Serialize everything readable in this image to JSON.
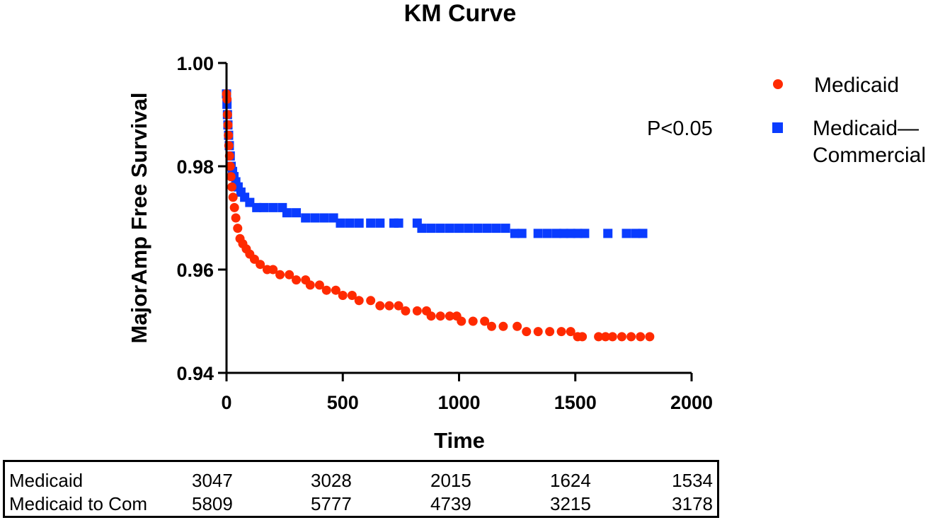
{
  "chart_data": {
    "type": "scatter",
    "title": "KM Curve",
    "xlabel": "Time",
    "ylabel": "MajorAmp Free Survival",
    "xlim": [
      0,
      2000
    ],
    "ylim": [
      0.94,
      1.0
    ],
    "x_ticks": [
      "0",
      "500",
      "1000",
      "1500",
      "2000"
    ],
    "y_ticks": [
      "0.94",
      "0.96",
      "0.98",
      "1.00"
    ],
    "annotation": "P<0.05",
    "legend_position": "right",
    "series": [
      {
        "name": "Medicaid",
        "marker": "circle",
        "color": "#ff2a00",
        "points": [
          [
            0,
            0.994
          ],
          [
            2,
            0.993
          ],
          [
            4,
            0.99
          ],
          [
            6,
            0.988
          ],
          [
            8,
            0.986
          ],
          [
            10,
            0.984
          ],
          [
            13,
            0.982
          ],
          [
            16,
            0.98
          ],
          [
            19,
            0.978
          ],
          [
            23,
            0.976
          ],
          [
            28,
            0.974
          ],
          [
            34,
            0.972
          ],
          [
            40,
            0.97
          ],
          [
            48,
            0.968
          ],
          [
            58,
            0.966
          ],
          [
            70,
            0.965
          ],
          [
            85,
            0.964
          ],
          [
            100,
            0.963
          ],
          [
            120,
            0.962
          ],
          [
            145,
            0.961
          ],
          [
            175,
            0.96
          ],
          [
            200,
            0.96
          ],
          [
            230,
            0.959
          ],
          [
            270,
            0.959
          ],
          [
            300,
            0.958
          ],
          [
            340,
            0.958
          ],
          [
            360,
            0.957
          ],
          [
            400,
            0.957
          ],
          [
            430,
            0.956
          ],
          [
            470,
            0.956
          ],
          [
            500,
            0.955
          ],
          [
            540,
            0.955
          ],
          [
            570,
            0.954
          ],
          [
            620,
            0.954
          ],
          [
            660,
            0.953
          ],
          [
            700,
            0.953
          ],
          [
            740,
            0.953
          ],
          [
            770,
            0.952
          ],
          [
            820,
            0.952
          ],
          [
            860,
            0.952
          ],
          [
            880,
            0.951
          ],
          [
            920,
            0.951
          ],
          [
            960,
            0.951
          ],
          [
            990,
            0.951
          ],
          [
            1010,
            0.95
          ],
          [
            1060,
            0.95
          ],
          [
            1110,
            0.95
          ],
          [
            1140,
            0.949
          ],
          [
            1190,
            0.949
          ],
          [
            1250,
            0.949
          ],
          [
            1290,
            0.948
          ],
          [
            1340,
            0.948
          ],
          [
            1390,
            0.948
          ],
          [
            1440,
            0.948
          ],
          [
            1480,
            0.948
          ],
          [
            1510,
            0.947
          ],
          [
            1530,
            0.947
          ],
          [
            1600,
            0.947
          ],
          [
            1630,
            0.947
          ],
          [
            1660,
            0.947
          ],
          [
            1700,
            0.947
          ],
          [
            1740,
            0.947
          ],
          [
            1780,
            0.947
          ],
          [
            1820,
            0.947
          ]
        ]
      },
      {
        "name": "Medicaid—\nCommercial",
        "marker": "square",
        "color": "#0a3cff",
        "points": [
          [
            0,
            0.994
          ],
          [
            2,
            0.992
          ],
          [
            4,
            0.99
          ],
          [
            6,
            0.988
          ],
          [
            9,
            0.986
          ],
          [
            12,
            0.984
          ],
          [
            16,
            0.982
          ],
          [
            20,
            0.98
          ],
          [
            26,
            0.979
          ],
          [
            32,
            0.978
          ],
          [
            40,
            0.977
          ],
          [
            50,
            0.976
          ],
          [
            62,
            0.975
          ],
          [
            78,
            0.974
          ],
          [
            100,
            0.973
          ],
          [
            130,
            0.972
          ],
          [
            160,
            0.972
          ],
          [
            200,
            0.972
          ],
          [
            240,
            0.972
          ],
          [
            260,
            0.971
          ],
          [
            300,
            0.971
          ],
          [
            340,
            0.97
          ],
          [
            380,
            0.97
          ],
          [
            420,
            0.97
          ],
          [
            460,
            0.97
          ],
          [
            490,
            0.969
          ],
          [
            530,
            0.969
          ],
          [
            570,
            0.969
          ],
          [
            620,
            0.969
          ],
          [
            660,
            0.969
          ],
          [
            720,
            0.969
          ],
          [
            740,
            0.969
          ],
          [
            820,
            0.969
          ],
          [
            840,
            0.968
          ],
          [
            880,
            0.968
          ],
          [
            920,
            0.968
          ],
          [
            960,
            0.968
          ],
          [
            1000,
            0.968
          ],
          [
            1040,
            0.968
          ],
          [
            1080,
            0.968
          ],
          [
            1120,
            0.968
          ],
          [
            1160,
            0.968
          ],
          [
            1200,
            0.968
          ],
          [
            1240,
            0.967
          ],
          [
            1270,
            0.967
          ],
          [
            1340,
            0.967
          ],
          [
            1380,
            0.967
          ],
          [
            1420,
            0.967
          ],
          [
            1450,
            0.967
          ],
          [
            1480,
            0.967
          ],
          [
            1510,
            0.967
          ],
          [
            1540,
            0.967
          ],
          [
            1640,
            0.967
          ],
          [
            1720,
            0.967
          ],
          [
            1760,
            0.967
          ],
          [
            1790,
            0.967
          ]
        ]
      }
    ]
  },
  "risk_table": {
    "rows": [
      {
        "label": "Medicaid",
        "values": [
          "3047",
          "3028",
          "2015",
          "1624",
          "1534"
        ]
      },
      {
        "label": "Medicaid to Com",
        "values": [
          "5809",
          "5777",
          "4739",
          "3215",
          "3178"
        ]
      }
    ]
  }
}
